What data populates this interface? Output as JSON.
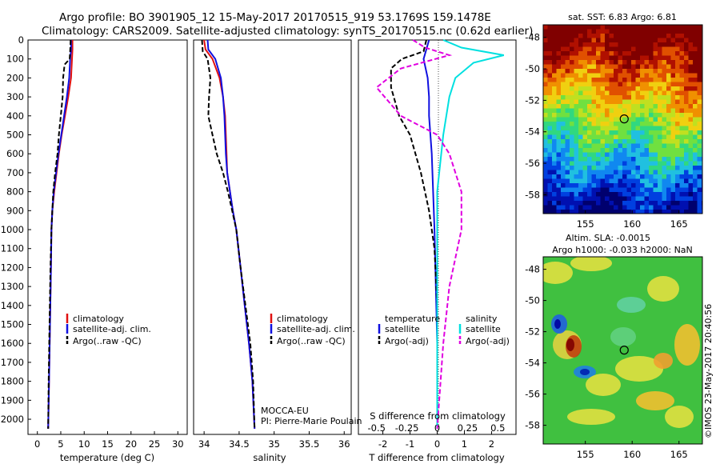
{
  "header": {
    "line1": "Argo profile: BO 3901905_12 15-May-2017 20170515_919 53.1769S 159.1478E",
    "line2": "Climatology: CARS2009. Satellite-adjusted climatology: synTS_20170515.nc (0.62d earlier)"
  },
  "colors": {
    "climatology": "#e01010",
    "satellite": "#1010e0",
    "argo": "#000000",
    "sal_satellite": "#00e0e0",
    "sal_argo": "#e000e0"
  },
  "chart_data": [
    {
      "type": "line",
      "xlabel": "temperature (deg C)",
      "xticks": [
        "0",
        "5",
        "10",
        "15",
        "20",
        "25",
        "30"
      ],
      "xlim": [
        -2,
        32
      ],
      "ylim": [
        0,
        2080
      ],
      "yticks": [
        "0",
        "100",
        "200",
        "300",
        "400",
        "500",
        "600",
        "700",
        "800",
        "900",
        "1000",
        "1100",
        "1200",
        "1300",
        "1400",
        "1500",
        "1600",
        "1700",
        "1800",
        "1900",
        "2000"
      ],
      "legend": [
        "climatology",
        "satellite-adj. clim.",
        "Argo(..raw -QC)"
      ],
      "series": [
        {
          "name": "climatology",
          "style": "solid",
          "color": "climatology",
          "points": [
            [
              7.5,
              0
            ],
            [
              7.5,
              50
            ],
            [
              7.4,
              100
            ],
            [
              7.2,
              200
            ],
            [
              6.6,
              300
            ],
            [
              5.9,
              400
            ],
            [
              5.2,
              500
            ],
            [
              4.6,
              600
            ],
            [
              4.1,
              700
            ],
            [
              3.6,
              800
            ],
            [
              3.2,
              900
            ],
            [
              3.0,
              1000
            ],
            [
              2.9,
              1200
            ],
            [
              2.7,
              1500
            ],
            [
              2.5,
              1800
            ],
            [
              2.3,
              2050
            ]
          ]
        },
        {
          "name": "satellite-adj. clim.",
          "style": "solid",
          "color": "satellite",
          "points": [
            [
              7.2,
              0
            ],
            [
              7.2,
              50
            ],
            [
              7.0,
              100
            ],
            [
              6.8,
              200
            ],
            [
              6.3,
              300
            ],
            [
              5.7,
              400
            ],
            [
              5.1,
              500
            ],
            [
              4.5,
              600
            ],
            [
              4.0,
              700
            ],
            [
              3.5,
              800
            ],
            [
              3.2,
              900
            ],
            [
              3.0,
              1000
            ],
            [
              2.9,
              1200
            ],
            [
              2.7,
              1500
            ],
            [
              2.5,
              1800
            ],
            [
              2.3,
              2050
            ]
          ]
        },
        {
          "name": "Argo(..raw -QC)",
          "style": "dashed",
          "color": "argo",
          "points": [
            [
              7.1,
              0
            ],
            [
              7.0,
              60
            ],
            [
              6.9,
              100
            ],
            [
              5.8,
              130
            ],
            [
              5.5,
              200
            ],
            [
              5.4,
              300
            ],
            [
              5.0,
              400
            ],
            [
              4.6,
              500
            ],
            [
              4.3,
              600
            ],
            [
              3.8,
              700
            ],
            [
              3.4,
              800
            ],
            [
              3.2,
              900
            ],
            [
              3.0,
              1000
            ],
            [
              2.8,
              1200
            ],
            [
              2.6,
              1500
            ],
            [
              2.4,
              1800
            ],
            [
              2.3,
              2050
            ]
          ]
        }
      ]
    },
    {
      "type": "line",
      "xlabel": "salinity",
      "xticks": [
        "34",
        "34.5",
        "35",
        "35.5",
        "36"
      ],
      "xlim": [
        33.85,
        36.1
      ],
      "ylim": [
        0,
        2080
      ],
      "legend": [
        "climatology",
        "satellite-adj. clim.",
        "Argo(..raw -QC)"
      ],
      "annotations": [
        "MOCCA-EU",
        "PI: Pierre-Marie Poulain"
      ],
      "series": [
        {
          "name": "climatology",
          "style": "solid",
          "color": "climatology",
          "points": [
            [
              34.0,
              0
            ],
            [
              34.02,
              50
            ],
            [
              34.12,
              100
            ],
            [
              34.22,
              200
            ],
            [
              34.27,
              300
            ],
            [
              34.3,
              400
            ],
            [
              34.31,
              500
            ],
            [
              34.32,
              600
            ],
            [
              34.33,
              700
            ],
            [
              34.37,
              800
            ],
            [
              34.41,
              900
            ],
            [
              34.46,
              1000
            ],
            [
              34.52,
              1200
            ],
            [
              34.58,
              1400
            ],
            [
              34.64,
              1600
            ],
            [
              34.69,
              1800
            ],
            [
              34.72,
              2050
            ]
          ]
        },
        {
          "name": "satellite-adj. clim.",
          "style": "solid",
          "color": "satellite",
          "points": [
            [
              34.05,
              0
            ],
            [
              34.06,
              50
            ],
            [
              34.16,
              100
            ],
            [
              34.24,
              200
            ],
            [
              34.27,
              300
            ],
            [
              34.29,
              400
            ],
            [
              34.3,
              500
            ],
            [
              34.31,
              600
            ],
            [
              34.33,
              700
            ],
            [
              34.37,
              800
            ],
            [
              34.41,
              900
            ],
            [
              34.46,
              1000
            ],
            [
              34.52,
              1200
            ],
            [
              34.58,
              1400
            ],
            [
              34.64,
              1600
            ],
            [
              34.69,
              1800
            ],
            [
              34.72,
              2050
            ]
          ]
        },
        {
          "name": "Argo(..raw -QC)",
          "style": "dashed",
          "color": "argo",
          "points": [
            [
              33.97,
              0
            ],
            [
              33.98,
              60
            ],
            [
              34.05,
              100
            ],
            [
              34.09,
              200
            ],
            [
              34.07,
              300
            ],
            [
              34.06,
              400
            ],
            [
              34.12,
              500
            ],
            [
              34.18,
              600
            ],
            [
              34.27,
              700
            ],
            [
              34.34,
              800
            ],
            [
              34.4,
              900
            ],
            [
              34.46,
              1000
            ],
            [
              34.52,
              1200
            ],
            [
              34.59,
              1400
            ],
            [
              34.66,
              1600
            ],
            [
              34.7,
              1800
            ],
            [
              34.72,
              2050
            ]
          ]
        }
      ]
    },
    {
      "type": "line",
      "xlabel": "T difference from climatology",
      "xlabel_top": "S difference from climatology",
      "xticks": [
        "-2",
        "-1",
        "0",
        "1",
        "2"
      ],
      "xticks_top": [
        "-0.5",
        "-0.25",
        "0",
        "0.25",
        "0.5"
      ],
      "xlim": [
        -2.9,
        2.9
      ],
      "ylim": [
        0,
        2080
      ],
      "legend": {
        "temperature": "temperature",
        "salinity": "salinity",
        "t_sat": "satellite",
        "t_argo": "Argo(-adj)",
        "s_sat": "satellite",
        "s_argo": "Argo(-adj)"
      },
      "series": [
        {
          "name": "temperature satellite",
          "style": "solid",
          "color": "satellite",
          "points": [
            [
              -0.3,
              0
            ],
            [
              -0.4,
              50
            ],
            [
              -0.5,
              100
            ],
            [
              -0.35,
              200
            ],
            [
              -0.3,
              300
            ],
            [
              -0.3,
              400
            ],
            [
              -0.2,
              600
            ],
            [
              -0.15,
              800
            ],
            [
              -0.1,
              1000
            ],
            [
              -0.05,
              1300
            ],
            [
              0,
              1600
            ],
            [
              0,
              2050
            ]
          ]
        },
        {
          "name": "temperature Argo(-adj)",
          "style": "dashed",
          "color": "argo",
          "points": [
            [
              -0.4,
              0
            ],
            [
              -0.5,
              60
            ],
            [
              -1.3,
              100
            ],
            [
              -1.7,
              150
            ],
            [
              -1.7,
              250
            ],
            [
              -1.4,
              400
            ],
            [
              -1.0,
              500
            ],
            [
              -0.6,
              700
            ],
            [
              -0.3,
              900
            ],
            [
              -0.1,
              1100
            ],
            [
              0,
              1400
            ],
            [
              0,
              2050
            ]
          ]
        },
        {
          "name": "salinity satellite",
          "style": "solid",
          "color": "sal_satellite",
          "points": [
            [
              0.05,
              0
            ],
            [
              0.2,
              40
            ],
            [
              0.55,
              80
            ],
            [
              0.3,
              120
            ],
            [
              0.15,
              200
            ],
            [
              0.1,
              300
            ],
            [
              0.05,
              500
            ],
            [
              0,
              800
            ],
            [
              0,
              2050
            ]
          ]
        },
        {
          "name": "salinity Argo(-adj)",
          "style": "dashed",
          "color": "sal_argo",
          "points": [
            [
              -0.2,
              0
            ],
            [
              -0.1,
              40
            ],
            [
              0.1,
              80
            ],
            [
              -0.3,
              150
            ],
            [
              -0.5,
              250
            ],
            [
              -0.3,
              400
            ],
            [
              0,
              500
            ],
            [
              0.1,
              600
            ],
            [
              0.2,
              800
            ],
            [
              0.2,
              1000
            ],
            [
              0.1,
              1300
            ],
            [
              0.05,
              1600
            ],
            [
              0,
              2050
            ]
          ]
        }
      ]
    },
    {
      "type": "heatmap",
      "title": "sat. SST: 6.83 Argo: 6.81",
      "xticks": [
        "155",
        "160",
        "165"
      ],
      "yticks": [
        "-48",
        "-50",
        "-52",
        "-54",
        "-56",
        "-58"
      ],
      "xlim": [
        150.5,
        167.5
      ],
      "ylim": [
        -59.2,
        -47.2
      ],
      "marker": {
        "lon": 159.15,
        "lat": -53.18
      }
    },
    {
      "type": "heatmap",
      "title": "Altim. SLA: -0.0015",
      "subtitle": "Argo h1000: -0.033 h2000: NaN",
      "xticks": [
        "155",
        "160",
        "165"
      ],
      "yticks": [
        "-48",
        "-50",
        "-52",
        "-54",
        "-56",
        "-58"
      ],
      "xlim": [
        150.5,
        167.5
      ],
      "ylim": [
        -59.2,
        -47.2
      ],
      "marker": {
        "lon": 159.15,
        "lat": -53.18
      }
    }
  ],
  "credit": "©IMOS 23-May-2017 20:40:56"
}
